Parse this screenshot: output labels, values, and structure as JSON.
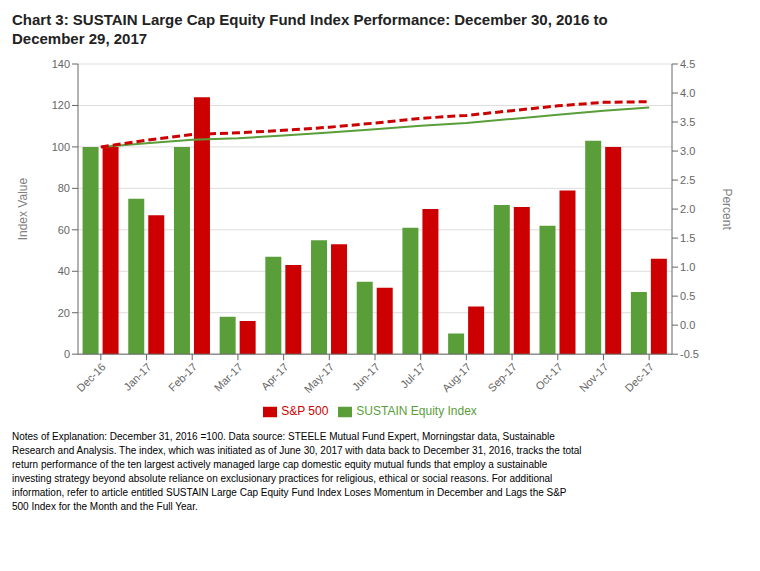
{
  "chart_data": {
    "type": "bar",
    "title": "Chart 3:  SUSTAIN Large Cap Equity Fund Index Performance:  December 30, 2016 to\nDecember 29, 2017",
    "categories": [
      "Dec-16",
      "Jan-17",
      "Feb-17",
      "Mar-17",
      "Apr-17",
      "May-17",
      "Jun-17",
      "Jul-17",
      "Aug-17",
      "Sep-17",
      "Oct-17",
      "Nov-17",
      "Dec-17"
    ],
    "series": [
      {
        "name": "SUSTAIN Equity Index",
        "type": "bar",
        "color": "#5a9e3a",
        "values": [
          100,
          75,
          100,
          18,
          47,
          55,
          35,
          61,
          10,
          72,
          62,
          103,
          30
        ]
      },
      {
        "name": "S&P 500",
        "type": "bar",
        "color": "#cc0000",
        "values": [
          100,
          67,
          124,
          16,
          43,
          53,
          32,
          70,
          23,
          71,
          79,
          100,
          46
        ]
      },
      {
        "type": "line",
        "color": "#5a9e3a",
        "line_style": "solid",
        "values": [
          100,
          101.8,
          103.5,
          104.2,
          105.5,
          107.0,
          108.5,
          110.2,
          111.5,
          113.5,
          115.5,
          117.5,
          119.0
        ]
      },
      {
        "type": "line",
        "color": "#cc0000",
        "line_style": "dashed",
        "values": [
          100,
          103.2,
          106.0,
          106.8,
          108.0,
          109.5,
          111.5,
          113.8,
          115.2,
          117.5,
          119.8,
          121.5,
          121.8
        ]
      }
    ],
    "ylabel": "Index Value",
    "y2label": "Percent",
    "ylim": [
      0,
      140
    ],
    "yticks": [
      0,
      20,
      40,
      60,
      80,
      100,
      120,
      140
    ],
    "y2lim": [
      -0.5,
      4.5
    ],
    "y2ticks": [
      -0.5,
      {
        "value": 0,
        "label": "0.0"
      },
      0.5,
      {
        "value": 1,
        "label": "1.0"
      },
      1.5,
      {
        "value": 2,
        "label": "2.0"
      },
      2.5,
      {
        "value": 3,
        "label": "3.0"
      },
      3.5,
      {
        "value": 4,
        "label": "4.0"
      },
      4.5
    ],
    "grid": true,
    "legend": "bottom",
    "notes": "Notes of Explanation:  December 31, 2016 =100.  Data source:  STEELE Mutual Fund Expert, Morningstar data, Sustainable\nResearch and Analysis. The index, which was initiated as of June 30, 2017 with data back to December 31, 2016, tracks the total\nreturn performance of the ten largest actively managed large cap domestic equity mutual funds that employ a sustainable\ninvesting strategy beyond absolute reliance on exclusionary practices for religious, ethical or social reasons.  For additional\ninformation, refer to article entitled SUSTAIN Large Cap Equity Fund Index Loses Momentum in December and Lags the S&P\n500 Index for the Month and the Full Year."
  }
}
